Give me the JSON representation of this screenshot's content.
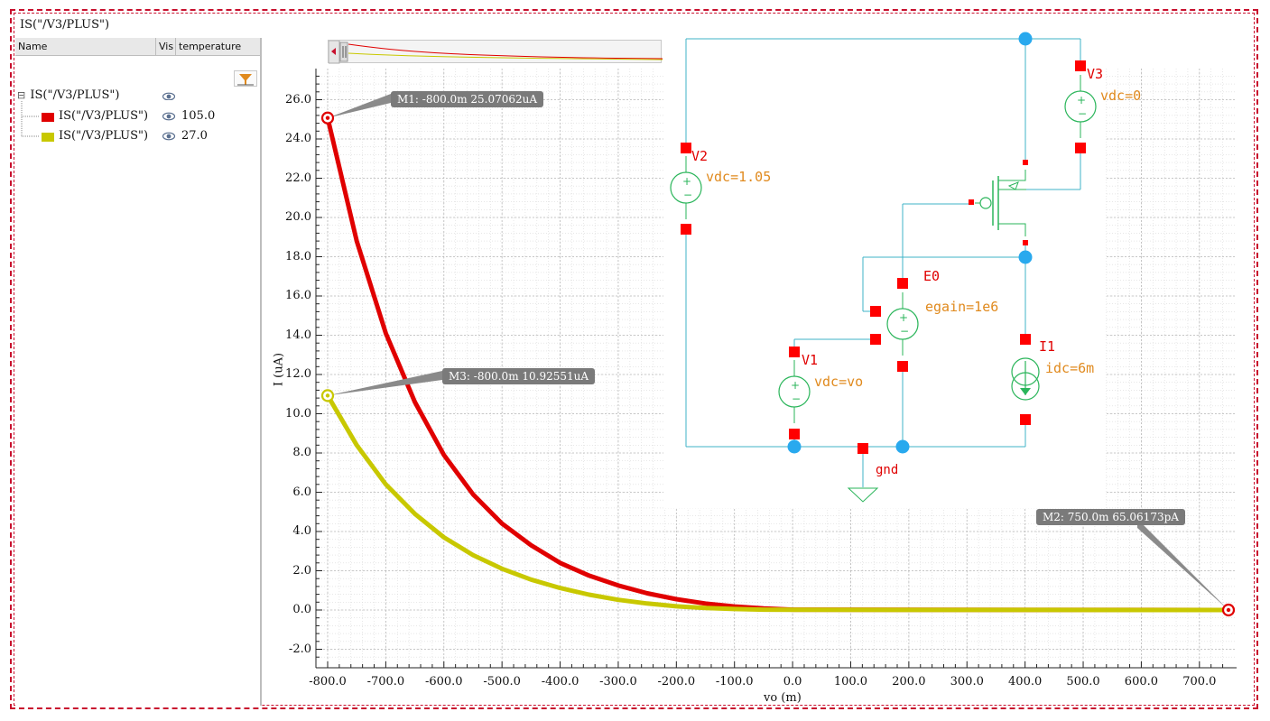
{
  "window": {
    "title": "IS(\"/V3/PLUS\")"
  },
  "panel": {
    "columns": {
      "name": "Name",
      "vis": "Vis",
      "temperature": "temperature"
    },
    "group": {
      "label": "IS(\"/V3/PLUS\")",
      "expander": "⊟"
    },
    "traces": [
      {
        "label": "IS(\"/V3/PLUS\")",
        "color": "#e00000",
        "temperature": "105.0"
      },
      {
        "label": "IS(\"/V3/PLUS\")",
        "color": "#c8c800",
        "temperature": "27.0"
      }
    ]
  },
  "chart_data": {
    "type": "line",
    "xlabel": "vo (m)",
    "ylabel": "I (uA)",
    "xlim": [
      -800,
      750
    ],
    "ylim": [
      -2.5,
      27.5
    ],
    "x_ticks": [
      "-800.0",
      "-700.0",
      "-600.0",
      "-500.0",
      "-400.0",
      "-300.0",
      "-200.0",
      "-100.0",
      "0.0",
      "100.0",
      "200.0",
      "300.0",
      "400.0",
      "500.0",
      "600.0",
      "700.0"
    ],
    "y_ticks": [
      "-2.0",
      "0.0",
      "2.0",
      "4.0",
      "6.0",
      "8.0",
      "10.0",
      "12.0",
      "14.0",
      "16.0",
      "18.0",
      "20.0",
      "22.0",
      "24.0",
      "26.0"
    ],
    "series": [
      {
        "name": "IS(\"/V3/PLUS\") temperature=105.0",
        "color": "#e00000",
        "x": [
          -800,
          -750,
          -700,
          -650,
          -600,
          -550,
          -500,
          -450,
          -400,
          -350,
          -300,
          -250,
          -200,
          -150,
          -100,
          -50,
          0,
          750
        ],
        "y": [
          25.07,
          18.8,
          14.1,
          10.6,
          7.9,
          5.9,
          4.4,
          3.3,
          2.4,
          1.75,
          1.25,
          0.85,
          0.55,
          0.33,
          0.18,
          0.08,
          0.02,
          0.0
        ]
      },
      {
        "name": "IS(\"/V3/PLUS\") temperature=27.0",
        "color": "#c8c800",
        "x": [
          -800,
          -750,
          -700,
          -650,
          -600,
          -550,
          -500,
          -450,
          -400,
          -350,
          -300,
          -250,
          -200,
          -150,
          -100,
          -50,
          0,
          750
        ],
        "y": [
          10.93,
          8.4,
          6.4,
          4.9,
          3.7,
          2.8,
          2.1,
          1.55,
          1.12,
          0.78,
          0.52,
          0.33,
          0.19,
          0.1,
          0.05,
          0.02,
          0.01,
          0.0
        ]
      }
    ],
    "markers": [
      {
        "id": "M1",
        "x": -800,
        "y": 25.07062,
        "color": "#e00000",
        "label": "M1: -800.0m 25.07062uA"
      },
      {
        "id": "M3",
        "x": -800,
        "y": 10.92551,
        "color": "#c8c800",
        "label": "M3: -800.0m 10.92551uA"
      },
      {
        "id": "M2",
        "x": 750,
        "y": 0.0,
        "color": "#e00000",
        "label": "M2: 750.0m 65.06173pA"
      }
    ]
  },
  "schematic": {
    "components": [
      {
        "ref": "V3",
        "param": "vdc=0"
      },
      {
        "ref": "V2",
        "param": "vdc=1.05"
      },
      {
        "ref": "E0",
        "param": "egain=1e6"
      },
      {
        "ref": "I1",
        "param": "idc=6m"
      },
      {
        "ref": "V1",
        "param": "vdc=vo"
      }
    ],
    "ground": "gnd"
  },
  "colors": {
    "wire": "#3fb3c7",
    "pin": "#ff0000",
    "node": "#29a9ee",
    "symbol": "#2ab55a"
  }
}
